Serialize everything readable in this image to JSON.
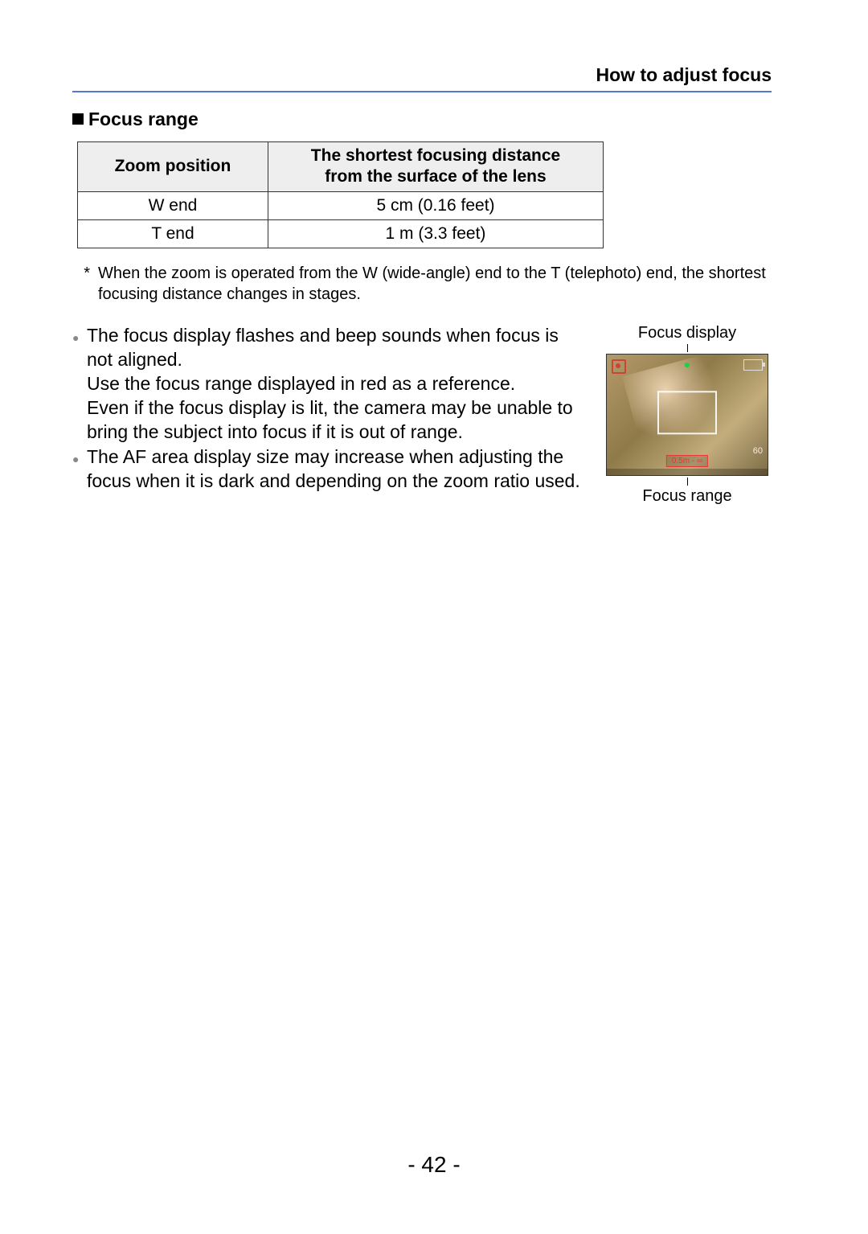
{
  "header": {
    "title": "How to adjust focus"
  },
  "section": {
    "heading": "Focus range"
  },
  "table": {
    "columns": {
      "zoom": "Zoom position",
      "dist_l1": "The shortest focusing distance",
      "dist_l2": "from the surface of the lens"
    },
    "rows": [
      {
        "zoom": "W end",
        "dist": "5 cm (0.16 feet)"
      },
      {
        "zoom": "T end",
        "dist": "1 m (3.3 feet)"
      }
    ]
  },
  "footnote": {
    "mark": "*",
    "text": "When the zoom is operated from the W (wide-angle) end to the T (telephoto) end, the shortest focusing distance changes in stages."
  },
  "bullets": {
    "b1_l1": "The focus display flashes and beep sounds when focus is not aligned.",
    "b1_l2": "Use the focus range displayed in red as a reference.",
    "b1_l3": "Even if the focus display is lit, the camera may be unable to bring the subject into focus if it is out of range.",
    "b2": "The AF area display size may increase when adjusting the focus when it is dark and depending on the zoom ratio used."
  },
  "figure": {
    "label_top": "Focus display",
    "label_bottom": "Focus range",
    "iso": "60",
    "range_text": "0.5m - ∞"
  },
  "page_number": "- 42 -",
  "colors": {
    "rule": "#5577cc",
    "table_header_bg": "#eeeeee",
    "bullet_dot": "#888888",
    "range_box": "#e53935"
  }
}
